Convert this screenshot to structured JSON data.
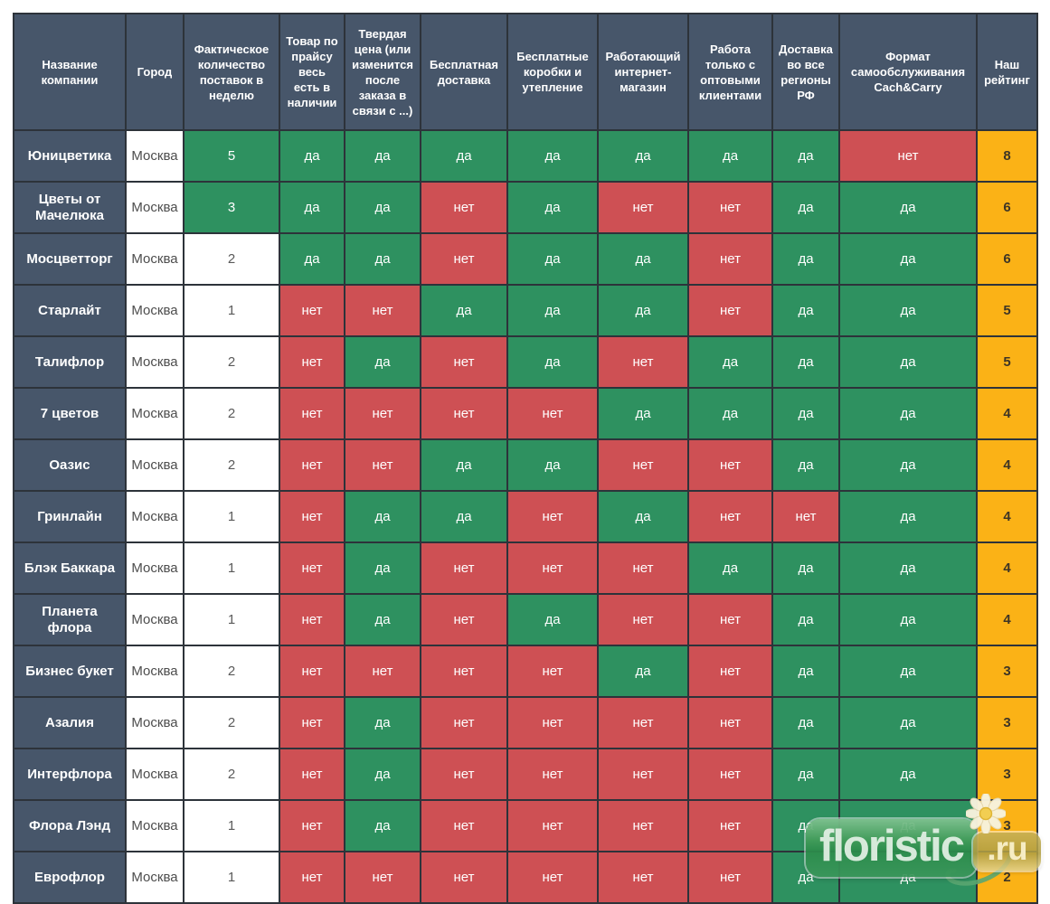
{
  "colors": {
    "header_bg": "#47566a",
    "yes_green": "#2e9160",
    "no_red": "#ce5054",
    "rating_orange": "#fbb216",
    "grid_border": "#2d333a",
    "city_text": "#4d4d4d",
    "rating_text": "#3e3526"
  },
  "watermark": {
    "logo_text": "floristic",
    "logo_suffix": ".ru",
    "flower_icon": "daisy-icon"
  },
  "chart_data": {
    "type": "table",
    "columns": [
      "Название компании",
      "Город",
      "Фактическое количество поставок в неделю",
      "Товар по прайсу весь есть в наличии",
      "Твердая цена (или изменится после заказа в связи с ...)",
      "Бесплатная доставка",
      "Бесплатные коробки и утепление",
      "Работающий интернет-магазин",
      "Работа только с оптовыми клиентами",
      "Доставка во все регионы РФ",
      "Формат самообслуживания Cach&Carry",
      "Наш рейтинг"
    ],
    "rows": [
      [
        "Юницветика",
        "Москва",
        "5",
        "да",
        "да",
        "да",
        "да",
        "да",
        "да",
        "да",
        "нет",
        "8"
      ],
      [
        "Цветы от Мачелюка",
        "Москва",
        "3",
        "да",
        "да",
        "нет",
        "да",
        "нет",
        "нет",
        "да",
        "да",
        "6"
      ],
      [
        "Мосцветторг",
        "Москва",
        "2",
        "да",
        "да",
        "нет",
        "да",
        "да",
        "нет",
        "да",
        "да",
        "6"
      ],
      [
        "Старлайт",
        "Москва",
        "1",
        "нет",
        "нет",
        "да",
        "да",
        "да",
        "нет",
        "да",
        "да",
        "5"
      ],
      [
        "Талифлор",
        "Москва",
        "2",
        "нет",
        "да",
        "нет",
        "да",
        "нет",
        "да",
        "да",
        "да",
        "5"
      ],
      [
        "7 цветов",
        "Москва",
        "2",
        "нет",
        "нет",
        "нет",
        "нет",
        "да",
        "да",
        "да",
        "да",
        "4"
      ],
      [
        "Оазис",
        "Москва",
        "2",
        "нет",
        "нет",
        "да",
        "да",
        "нет",
        "нет",
        "да",
        "да",
        "4"
      ],
      [
        "Гринлайн",
        "Москва",
        "1",
        "нет",
        "да",
        "да",
        "нет",
        "да",
        "нет",
        "нет",
        "да",
        "4"
      ],
      [
        "Блэк Баккара",
        "Москва",
        "1",
        "нет",
        "да",
        "нет",
        "нет",
        "нет",
        "да",
        "да",
        "да",
        "4"
      ],
      [
        "Планета флора",
        "Москва",
        "1",
        "нет",
        "да",
        "нет",
        "да",
        "нет",
        "нет",
        "да",
        "да",
        "4"
      ],
      [
        "Бизнес букет",
        "Москва",
        "2",
        "нет",
        "нет",
        "нет",
        "нет",
        "да",
        "нет",
        "да",
        "да",
        "3"
      ],
      [
        "Азалия",
        "Москва",
        "2",
        "нет",
        "да",
        "нет",
        "нет",
        "нет",
        "нет",
        "да",
        "да",
        "3"
      ],
      [
        "Интерфлора",
        "Москва",
        "2",
        "нет",
        "да",
        "нет",
        "нет",
        "нет",
        "нет",
        "да",
        "да",
        "3"
      ],
      [
        "Флора Лэнд",
        "Москва",
        "1",
        "нет",
        "да",
        "нет",
        "нет",
        "нет",
        "нет",
        "да",
        "да",
        "3"
      ],
      [
        "Еврофлор",
        "Москва",
        "1",
        "нет",
        "нет",
        "нет",
        "нет",
        "нет",
        "нет",
        "да",
        "да",
        "2"
      ]
    ]
  }
}
